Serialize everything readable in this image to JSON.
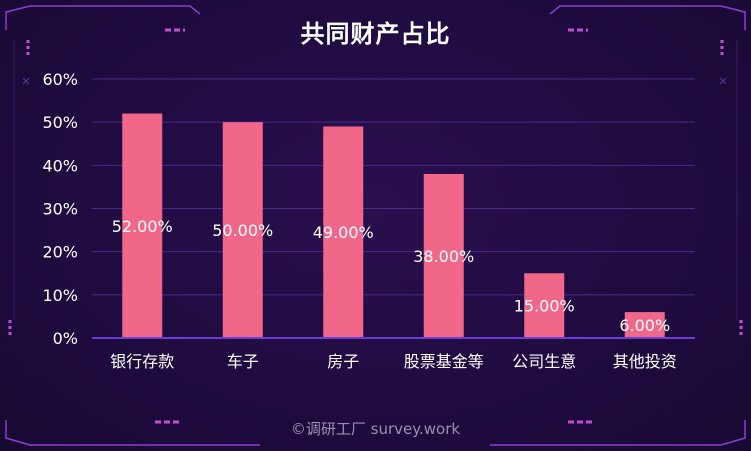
{
  "chart_data": {
    "type": "bar",
    "title": "共同财产占比",
    "categories": [
      "银行存款",
      "车子",
      "房子",
      "股票基金等",
      "公司生意",
      "其他投资"
    ],
    "values": [
      52.0,
      50.0,
      49.0,
      38.0,
      15.0,
      6.0
    ],
    "value_labels": [
      "52.00%",
      "50.00%",
      "49.00%",
      "38.00%",
      "15.00%",
      "6.00%"
    ],
    "y_ticks": [
      "0%",
      "10%",
      "20%",
      "30%",
      "40%",
      "50%",
      "60%"
    ],
    "ylim": [
      0,
      60
    ],
    "xlabel": "",
    "ylabel": "",
    "grid": true,
    "legend": "none"
  },
  "colors": {
    "bar": "#f0678a",
    "grid": "#4a2a8a",
    "axis": "#6a3cd8",
    "text": "#ffffff",
    "frame": "#8a3fd0",
    "accent": "#c44dd6"
  },
  "watermark": "©调研工厂 survey.work"
}
